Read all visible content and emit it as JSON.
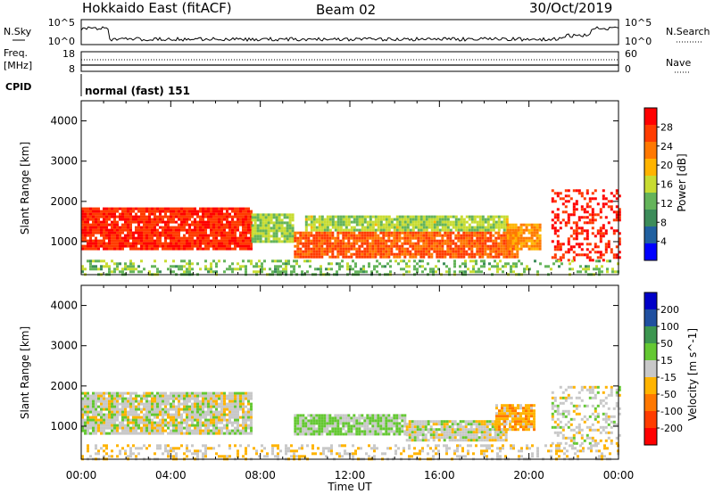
{
  "header": {
    "title": "Hokkaido East (fitACF)",
    "beam": "Beam 02",
    "date": "30/Oct/2019"
  },
  "noise_panel": {
    "left_label": "N.Sky",
    "right_label": "N.Search",
    "left_ticks": [
      "10^5",
      "10^0"
    ],
    "right_ticks": [
      "10^5",
      "10^0"
    ]
  },
  "freq_panel": {
    "left_label_1": "Freq.",
    "left_label_2": "[MHz]",
    "right_label": "Nave",
    "left_ticks": [
      "18",
      "8"
    ],
    "right_ticks": [
      "60",
      "0"
    ]
  },
  "cpid_panel": {
    "label": "CPID",
    "text": "normal (fast) 151"
  },
  "colors": {
    "power_scale": [
      "#0000ff",
      "#2060a0",
      "#3c8c5a",
      "#64b45a",
      "#c8dc32",
      "#ffb400",
      "#ff7800",
      "#ff3c00",
      "#ff0000"
    ],
    "velocity_scale": [
      "#ff0000",
      "#ff3c00",
      "#ff7800",
      "#ffb400",
      "#c8c8c8",
      "#64c832",
      "#3c9650",
      "#2050a0",
      "#0000c8"
    ]
  },
  "chart_data": [
    {
      "type": "heatmap",
      "name": "power",
      "ylabel": "Slant Range [km]",
      "xlim_hours": [
        0,
        24
      ],
      "ylim": [
        180,
        4500
      ],
      "yticks": [
        "1000",
        "2000",
        "3000",
        "4000"
      ],
      "colorbar": {
        "label": "Power [dB]",
        "range": [
          0,
          32
        ],
        "ticks": [
          "4",
          "8",
          "12",
          "16",
          "20",
          "24",
          "28"
        ]
      },
      "regions": [
        {
          "t0": 0.0,
          "t1": 7.6,
          "r0": 850,
          "r1": 1850,
          "value": 28
        },
        {
          "t0": 7.6,
          "t1": 9.5,
          "r0": 1000,
          "r1": 1700,
          "value": 14
        },
        {
          "t0": 9.5,
          "t1": 19.5,
          "r0": 650,
          "r1": 1250,
          "value": 25
        },
        {
          "t0": 10.0,
          "t1": 19.0,
          "r0": 1300,
          "r1": 1650,
          "value": 15
        },
        {
          "t0": 19.0,
          "t1": 20.5,
          "r0": 850,
          "r1": 1450,
          "value": 22
        },
        {
          "t0": 21.0,
          "t1": 24.0,
          "r0": 550,
          "r1": 2300,
          "value": 29
        },
        {
          "t0": 0.0,
          "t1": 24.0,
          "r0": 180,
          "r1": 550,
          "value": 13
        }
      ]
    },
    {
      "type": "heatmap",
      "name": "velocity",
      "ylabel": "Slant Range [km]",
      "xlabel": "Time UT",
      "xlim_hours": [
        0,
        24
      ],
      "ylim": [
        180,
        4500
      ],
      "yticks": [
        "1000",
        "2000",
        "3000",
        "4000"
      ],
      "xticks": [
        "00:00",
        "04:00",
        "08:00",
        "12:00",
        "16:00",
        "20:00",
        "00:00"
      ],
      "colorbar": {
        "label": "Velocity [m s^-1]",
        "range": [
          -250,
          250
        ],
        "ticks": [
          "200",
          "100",
          "50",
          "15",
          "-15",
          "-50",
          "-100",
          "-200"
        ]
      },
      "regions": [
        {
          "t0": 0.0,
          "t1": 7.6,
          "r0": 850,
          "r1": 1850,
          "value": 0
        },
        {
          "t0": 9.5,
          "t1": 14.5,
          "r0": 800,
          "r1": 1300,
          "value": 35
        },
        {
          "t0": 14.5,
          "t1": 19.0,
          "r0": 650,
          "r1": 1150,
          "value": 0
        },
        {
          "t0": 18.5,
          "t1": 20.2,
          "r0": 900,
          "r1": 1550,
          "value": -60
        },
        {
          "t0": 21.0,
          "t1": 24.0,
          "r0": 550,
          "r1": 2000,
          "value": 0
        },
        {
          "t0": 0.0,
          "t1": 24.0,
          "r0": 180,
          "r1": 550,
          "value": -20
        }
      ]
    }
  ]
}
